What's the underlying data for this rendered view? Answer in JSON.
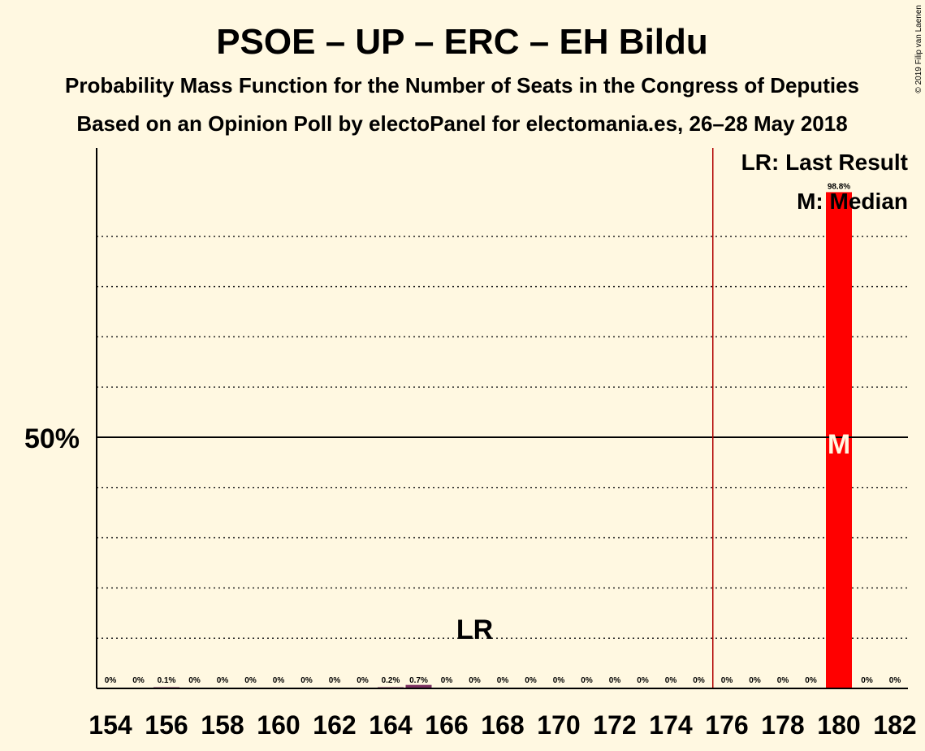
{
  "colors": {
    "background": "#fff8e1",
    "bar_highlight": "#ff0000",
    "bar_small": "#7a3060",
    "majority_line": "#b00000",
    "text": "#1a0a0a"
  },
  "chart_data": {
    "type": "bar",
    "title": "PSOE – UP – ERC – EH Bildu",
    "subtitle": "Probability Mass Function for the Number of Seats in the Congress of Deputies",
    "subtitle2": "Based on an Opinion Poll by electoPanel for electomania.es, 26–28 May 2018",
    "copyright": "© 2019 Filip van Laenen",
    "x": [
      154,
      155,
      156,
      157,
      158,
      159,
      160,
      161,
      162,
      163,
      164,
      165,
      166,
      167,
      168,
      169,
      170,
      171,
      172,
      173,
      174,
      175,
      176,
      177,
      178,
      179,
      180,
      181,
      182
    ],
    "values": [
      0,
      0,
      0.1,
      0,
      0,
      0,
      0,
      0,
      0,
      0,
      0.2,
      0.7,
      0,
      0,
      0,
      0,
      0,
      0,
      0,
      0,
      0,
      0,
      0,
      0,
      0,
      0,
      98.8,
      0,
      0
    ],
    "value_labels": [
      "0%",
      "0%",
      "0.1%",
      "0%",
      "0%",
      "0%",
      "0%",
      "0%",
      "0%",
      "0%",
      "0.2%",
      "0.7%",
      "0%",
      "0%",
      "0%",
      "0%",
      "0%",
      "0%",
      "0%",
      "0%",
      "0%",
      "0%",
      "0%",
      "0%",
      "0%",
      "0%",
      "98.8%",
      "0%",
      "0%"
    ],
    "x_tick_labels": [
      "154",
      "156",
      "158",
      "160",
      "162",
      "164",
      "166",
      "168",
      "170",
      "172",
      "174",
      "176",
      "178",
      "180",
      "182"
    ],
    "y_tick_labels": [
      "50%"
    ],
    "ylim": [
      0,
      100
    ],
    "gridlines_percent": [
      10,
      20,
      30,
      40,
      60,
      70,
      80,
      90
    ],
    "fifty_line": 50,
    "majority_seat": 176,
    "last_result_seat": 167,
    "median_seat": 180,
    "last_result_mark": "LR",
    "median_mark": "M",
    "legend": [
      "LR: Last Result",
      "M: Median"
    ],
    "legend_position": "top-right"
  }
}
